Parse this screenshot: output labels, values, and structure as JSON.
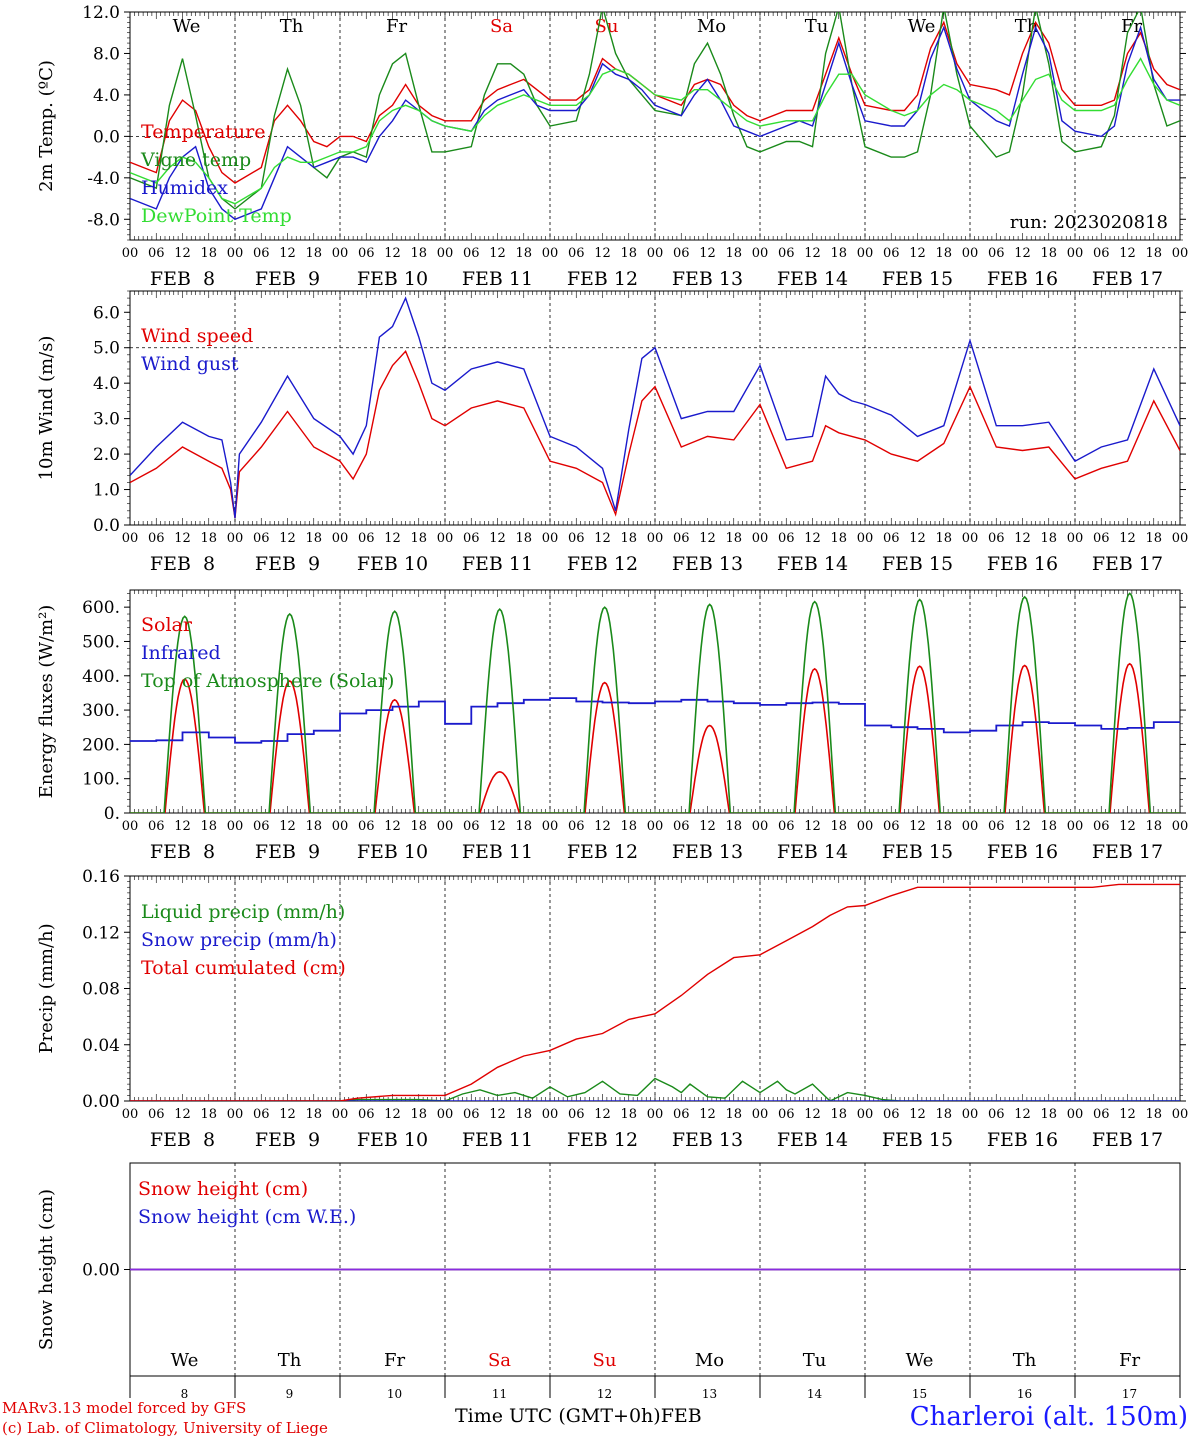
{
  "footer": {
    "model_line": "MARv3.13 model forced by GFS",
    "copyright_line": "(c) Lab. of Climatology, University of Liege",
    "time_label": "Time UTC (GMT+0h)",
    "month_label": "FEB",
    "station": "Charleroi (alt. 150m)"
  },
  "colors": {
    "red": "#e00000",
    "green": "#1a8a1a",
    "blue": "#1a1acc",
    "lightgreen": "#33dd33",
    "purple": "#8a2be2"
  },
  "days": {
    "weekday_labels": [
      "We",
      "Th",
      "Fr",
      "Sa",
      "Su",
      "Mo",
      "Tu",
      "We",
      "Th",
      "Fr"
    ],
    "weekend_flags": [
      false,
      false,
      false,
      true,
      true,
      false,
      false,
      false,
      false,
      false
    ],
    "date_labels": [
      "FEB  8",
      "FEB  9",
      "FEB 10",
      "FEB 11",
      "FEB 12",
      "FEB 13",
      "FEB 14",
      "FEB 15",
      "FEB 16",
      "FEB 17"
    ],
    "day_numbers": [
      "8",
      "9",
      "10",
      "11",
      "12",
      "13",
      "14",
      "15",
      "16",
      "17"
    ],
    "hour_ticks": [
      "00",
      "06",
      "12",
      "18"
    ],
    "final_hour": "00"
  },
  "chart_data": [
    {
      "type": "line",
      "ylabel": "2m Temp. (ºC)",
      "ylim": [
        -10,
        12
      ],
      "yticks": [
        "12.0",
        "8.0",
        "4.0",
        "0.0",
        "-4.0",
        "-8.0"
      ],
      "ytick_values": [
        12,
        8,
        4,
        0,
        -4,
        -8
      ],
      "run_label": "run: 2023020818",
      "x_hours": [
        0,
        6,
        9,
        12,
        15,
        18,
        21,
        24,
        30,
        33,
        36,
        39,
        42,
        45,
        48,
        51,
        54,
        57,
        60,
        63,
        66,
        69,
        72,
        78,
        81,
        84,
        87,
        90,
        93,
        96,
        102,
        105,
        108,
        111,
        114,
        117,
        120,
        126,
        129,
        132,
        135,
        138,
        141,
        144,
        150,
        153,
        156,
        159,
        162,
        165,
        168,
        174,
        177,
        180,
        183,
        186,
        189,
        192,
        198,
        201,
        204,
        207,
        210,
        213,
        216,
        222,
        225,
        228,
        231,
        234,
        237,
        240
      ],
      "series": [
        {
          "name": "Temperature",
          "color": "#e00000",
          "values": [
            -2.5,
            -3.5,
            1.5,
            3.5,
            2.5,
            -1,
            -3.5,
            -4.5,
            -3,
            1.5,
            3,
            1.5,
            -0.5,
            -1,
            0,
            0,
            -0.5,
            2,
            3,
            5,
            3,
            2,
            1.5,
            1.5,
            3.5,
            4.5,
            5,
            5.5,
            4.5,
            3.5,
            3.5,
            4.5,
            7.5,
            6.5,
            6,
            5,
            4,
            3,
            5,
            5.5,
            5,
            3,
            2,
            1.5,
            2.5,
            2.5,
            2.5,
            6,
            9.5,
            6,
            3,
            2.5,
            2.5,
            4,
            8.5,
            11,
            7,
            5,
            4.5,
            4,
            8,
            11,
            9,
            4.5,
            3,
            3,
            3.5,
            8,
            10,
            6.5,
            5,
            4.5
          ]
        },
        {
          "name": "Vigne temp",
          "color": "#1a8a1a",
          "values": [
            -4,
            -5,
            3,
            7.5,
            2,
            -4,
            -6,
            -7,
            -5,
            2,
            6.5,
            3,
            -3,
            -4,
            -2,
            -1.5,
            -2,
            4,
            7,
            8,
            3,
            -1.5,
            -1.5,
            -1,
            4,
            7,
            7,
            6,
            3,
            1,
            1.5,
            6,
            12.5,
            8,
            5.5,
            4,
            2.5,
            2,
            7,
            9,
            6,
            2,
            -1,
            -1.5,
            -0.5,
            -0.5,
            -1,
            8,
            12.5,
            5,
            -1,
            -2,
            -2,
            -1.5,
            4,
            12.5,
            6,
            1,
            -2,
            -1.5,
            4,
            12.5,
            7,
            -0.5,
            -1.5,
            -1,
            2,
            10,
            12.5,
            5,
            1,
            1.5
          ]
        },
        {
          "name": "Humidex",
          "color": "#1a1acc",
          "values": [
            -6,
            -7,
            -4,
            -2,
            -1,
            -5,
            -7,
            -8,
            -7,
            -4,
            -1,
            -2,
            -3,
            -2.5,
            -2,
            -2,
            -2.5,
            0,
            1.5,
            3.5,
            2.5,
            1.5,
            1,
            0.5,
            2.5,
            3.5,
            4,
            4.5,
            3,
            2.5,
            2.5,
            4,
            7,
            6,
            5.5,
            4.5,
            3,
            2,
            4,
            5.5,
            3.5,
            1,
            0.5,
            0,
            1,
            1.5,
            1,
            5,
            9,
            5,
            1.5,
            1,
            1,
            2.5,
            7.5,
            10.5,
            6.5,
            3.5,
            1.5,
            1,
            6,
            10.5,
            8,
            1.5,
            0.5,
            0,
            1,
            7,
            10.5,
            5.5,
            3.5,
            3.5
          ]
        },
        {
          "name": "DewPoint Temp",
          "color": "#33dd33",
          "values": [
            -3.5,
            -4.5,
            -3,
            -2,
            -2.5,
            -4,
            -6,
            -6.5,
            -5,
            -3,
            -2,
            -2.5,
            -2.5,
            -2,
            -1.5,
            -1.5,
            -1,
            1.5,
            2.5,
            3,
            2.5,
            1.5,
            1,
            0.5,
            2,
            3,
            3.5,
            4,
            3.5,
            3,
            3,
            4,
            6,
            6.5,
            6,
            5,
            4,
            3.5,
            4.5,
            4.5,
            3.5,
            2.5,
            1.5,
            1,
            1.5,
            1.5,
            1.5,
            4,
            6,
            6,
            4,
            2.5,
            2,
            2.5,
            4,
            5,
            4.5,
            3.5,
            2.5,
            1.5,
            3.5,
            5.5,
            6,
            3.5,
            2.5,
            2.5,
            3,
            5.5,
            7.5,
            5,
            3.5,
            3
          ]
        }
      ]
    },
    {
      "type": "line",
      "ylabel": "10m Wind (m/s)",
      "ylim": [
        0,
        6.6
      ],
      "yticks": [
        "6.0",
        "5.0",
        "4.0",
        "3.0",
        "2.0",
        "1.0",
        "0.0"
      ],
      "ytick_values": [
        6,
        5,
        4,
        3,
        2,
        1,
        0
      ],
      "ref_line": 5.0,
      "x_hours": [
        0,
        6,
        12,
        18,
        21,
        23,
        24,
        25,
        30,
        36,
        42,
        48,
        51,
        54,
        57,
        60,
        63,
        66,
        69,
        72,
        78,
        84,
        90,
        96,
        102,
        108,
        111,
        114,
        117,
        120,
        126,
        132,
        138,
        144,
        150,
        156,
        159,
        162,
        165,
        168,
        174,
        180,
        186,
        192,
        198,
        204,
        210,
        216,
        222,
        228,
        234,
        240
      ],
      "series": [
        {
          "name": "Wind speed",
          "color": "#e00000",
          "values": [
            1.2,
            1.6,
            2.2,
            1.8,
            1.6,
            1.0,
            0.2,
            1.5,
            2.2,
            3.2,
            2.2,
            1.8,
            1.3,
            2.0,
            3.8,
            4.5,
            4.9,
            4.0,
            3.0,
            2.8,
            3.3,
            3.5,
            3.3,
            1.8,
            1.6,
            1.2,
            0.3,
            2.0,
            3.5,
            3.9,
            2.2,
            2.5,
            2.4,
            3.4,
            1.6,
            1.8,
            2.8,
            2.6,
            2.5,
            2.4,
            2.0,
            1.8,
            2.3,
            3.9,
            2.2,
            2.1,
            2.2,
            1.3,
            1.6,
            1.8,
            3.5,
            2.1
          ]
        },
        {
          "name": "Wind gust",
          "color": "#1a1acc",
          "values": [
            1.4,
            2.2,
            2.9,
            2.5,
            2.4,
            1.2,
            0.2,
            2.0,
            2.9,
            4.2,
            3.0,
            2.5,
            2.0,
            2.8,
            5.3,
            5.6,
            6.4,
            5.3,
            4.0,
            3.8,
            4.4,
            4.6,
            4.4,
            2.5,
            2.2,
            1.6,
            0.4,
            2.7,
            4.7,
            5.0,
            3.0,
            3.2,
            3.2,
            4.5,
            2.4,
            2.5,
            4.2,
            3.7,
            3.5,
            3.4,
            3.1,
            2.5,
            2.8,
            5.2,
            2.8,
            2.8,
            2.9,
            1.8,
            2.2,
            2.4,
            4.4,
            2.8
          ]
        }
      ]
    },
    {
      "type": "line",
      "ylabel": "Energy fluxes (W/m²)",
      "ylim": [
        0,
        650
      ],
      "yticks": [
        "600.",
        "500.",
        "400.",
        "300.",
        "200.",
        "100.",
        "0."
      ],
      "ytick_values": [
        600,
        500,
        400,
        300,
        200,
        100,
        0
      ],
      "series": [
        {
          "name": "Solar",
          "color": "#e00000",
          "peak_hour": 12.5,
          "half_width_hours": 4.5,
          "daily_peaks": [
            390,
            385,
            330,
            120,
            380,
            255,
            420,
            428,
            430,
            435
          ]
        },
        {
          "name": "Infrared",
          "color": "#1a1acc",
          "x_hours": [
            0,
            6,
            12,
            18,
            24,
            30,
            36,
            42,
            48,
            54,
            60,
            66,
            72,
            78,
            84,
            90,
            96,
            102,
            108,
            114,
            120,
            126,
            132,
            138,
            144,
            150,
            156,
            162,
            168,
            174,
            180,
            186,
            192,
            198,
            204,
            210,
            216,
            222,
            228,
            234,
            240
          ],
          "values": [
            210,
            212,
            235,
            220,
            205,
            210,
            230,
            240,
            290,
            300,
            310,
            325,
            260,
            310,
            320,
            330,
            335,
            325,
            322,
            320,
            325,
            330,
            325,
            320,
            315,
            320,
            322,
            318,
            255,
            250,
            245,
            235,
            240,
            255,
            265,
            262,
            255,
            245,
            248,
            265,
            265
          ]
        },
        {
          "name": "Top of Atmosphere (Solar)",
          "color": "#1a8a1a",
          "peak_hour": 12.5,
          "half_width_hours": 4.7,
          "daily_peaks": [
            573,
            580,
            588,
            594,
            600,
            608,
            616,
            622,
            630,
            640
          ]
        }
      ]
    },
    {
      "type": "line",
      "ylabel": "Precip (mm/h)",
      "ylim": [
        0,
        0.16
      ],
      "yticks": [
        "0.16",
        "0.12",
        "0.08",
        "0.04",
        "0.00"
      ],
      "ytick_values": [
        0.16,
        0.12,
        0.08,
        0.04,
        0.0
      ],
      "series": [
        {
          "name": "Liquid precip (mm/h)",
          "color": "#1a8a1a",
          "x_hours": [
            0,
            48,
            52,
            60,
            66,
            72,
            76,
            80,
            84,
            88,
            92,
            96,
            100,
            104,
            108,
            112,
            116,
            120,
            124,
            126,
            128,
            132,
            136,
            140,
            144,
            148,
            150,
            152,
            156,
            160,
            164,
            168,
            172,
            176,
            180,
            240
          ],
          "values": [
            0,
            0,
            0.001,
            0.001,
            0.001,
            0,
            0.005,
            0.008,
            0.004,
            0.006,
            0.002,
            0.01,
            0.003,
            0.006,
            0.014,
            0.005,
            0.004,
            0.016,
            0.01,
            0.006,
            0.012,
            0.003,
            0.002,
            0.014,
            0.006,
            0.014,
            0.008,
            0.005,
            0.012,
            0,
            0.006,
            0.004,
            0.001,
            0,
            0,
            0
          ]
        },
        {
          "name": "Snow precip (mm/h)",
          "color": "#1a1acc",
          "x_hours": [
            0,
            240
          ],
          "values": [
            0,
            0
          ]
        },
        {
          "name": "Total cumulated (cm)",
          "color": "#e00000",
          "x_hours": [
            0,
            48,
            52,
            60,
            66,
            72,
            78,
            84,
            90,
            96,
            102,
            108,
            114,
            120,
            126,
            132,
            138,
            144,
            150,
            156,
            160,
            164,
            168,
            174,
            180,
            220,
            226,
            240
          ],
          "values": [
            0,
            0,
            0.002,
            0.004,
            0.004,
            0.004,
            0.012,
            0.024,
            0.032,
            0.036,
            0.044,
            0.048,
            0.058,
            0.062,
            0.075,
            0.09,
            0.102,
            0.104,
            0.114,
            0.124,
            0.132,
            0.138,
            0.139,
            0.146,
            0.152,
            0.152,
            0.154,
            0.154
          ]
        }
      ]
    },
    {
      "type": "line",
      "ylabel": "Snow height (cm)",
      "ylim": [
        -1,
        1
      ],
      "yticks": [
        "0.00"
      ],
      "ytick_values": [
        0
      ],
      "series": [
        {
          "name": "Snow height (cm)",
          "color": "#e00000",
          "x_hours": [
            0,
            240
          ],
          "values": [
            0,
            0
          ]
        },
        {
          "name": "Snow height (cm W.E.)",
          "color": "#1a1acc",
          "x_hours": [
            0,
            240
          ],
          "values": [
            0,
            0
          ]
        }
      ]
    }
  ]
}
